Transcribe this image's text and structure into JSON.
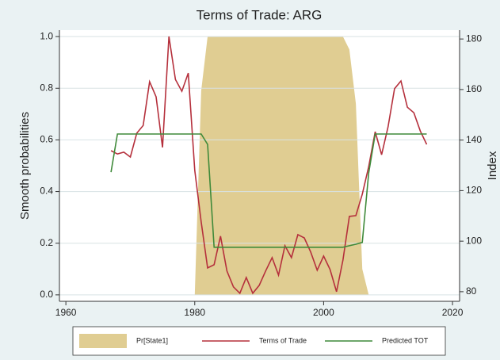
{
  "chart_data": {
    "type": "line",
    "title": "Terms of Trade: ARG",
    "y_label": "Smooth probabilities",
    "y2_label": "Index",
    "x": [
      1967,
      1968,
      1969,
      1970,
      1971,
      1972,
      1973,
      1974,
      1975,
      1976,
      1977,
      1978,
      1979,
      1980,
      1981,
      1982,
      1983,
      1984,
      1985,
      1986,
      1987,
      1988,
      1989,
      1990,
      1991,
      1992,
      1993,
      1994,
      1995,
      1996,
      1997,
      1998,
      1999,
      2000,
      2001,
      2002,
      2003,
      2004,
      2005,
      2006,
      2007,
      2008,
      2009,
      2010,
      2011,
      2012,
      2013,
      2014,
      2015,
      2016
    ],
    "xlim": [
      1959,
      2021.1
    ],
    "xticks": [
      1960,
      1980,
      2000,
      2020
    ],
    "ylim": [
      -0.025,
      1.025
    ],
    "yticks": [
      {
        "value": 0,
        "label": "0.0"
      },
      0.2,
      0.4,
      0.6,
      0.8,
      {
        "value": 1,
        "label": "1.0"
      }
    ],
    "y2lim": [
      76.2,
      183.5
    ],
    "y2ticks": [
      80,
      100,
      120,
      140,
      160,
      180
    ],
    "grid": true,
    "series": [
      {
        "name": "Pr[State1]",
        "type": "area",
        "color": "#e0cd92",
        "values": [
          0,
          0,
          0,
          0,
          0,
          0,
          0,
          0,
          0,
          0,
          0,
          0,
          0,
          0,
          0.79,
          1,
          1,
          1,
          1,
          1,
          1,
          1,
          1,
          1,
          1,
          1,
          1,
          1,
          1,
          1,
          1,
          1,
          1,
          1,
          1,
          1,
          1,
          0.95,
          0.74,
          0.1,
          0,
          0,
          0,
          0,
          0,
          0,
          0,
          0,
          0,
          0
        ]
      },
      {
        "name": "Terms of Trade",
        "type": "line",
        "axis": "y2",
        "color": "#b5303c",
        "values": [
          135.8,
          134.5,
          135.2,
          133.3,
          142.7,
          145.8,
          163.1,
          157.1,
          137.1,
          181,
          164,
          159.3,
          166.5,
          128,
          107.6,
          89.4,
          90.7,
          102,
          88.2,
          81.9,
          79.4,
          85.6,
          79.4,
          82.5,
          88.2,
          93.5,
          86.6,
          98.2,
          93.5,
          102.6,
          101.3,
          95.7,
          88.5,
          94.1,
          88.8,
          80,
          92.5,
          109.8,
          110.1,
          118.6,
          129.5,
          143.3,
          134.2,
          145.2,
          160.3,
          163.4,
          153,
          150.8,
          143.6,
          138.3
        ]
      },
      {
        "name": "Predicted TOT",
        "type": "line",
        "axis": "y2",
        "color": "#3f8a3a",
        "values": [
          127.3,
          142.4,
          142.4,
          142.4,
          142.4,
          142.4,
          142.4,
          142.4,
          142.4,
          142.4,
          142.4,
          142.4,
          142.4,
          142.4,
          142.4,
          138.3,
          97.6,
          97.6,
          97.6,
          97.6,
          97.6,
          97.6,
          97.6,
          97.6,
          97.6,
          97.6,
          97.6,
          97.6,
          97.6,
          97.6,
          97.6,
          97.6,
          97.6,
          97.6,
          97.6,
          97.6,
          97.6,
          98.2,
          98.8,
          99.5,
          127,
          142.4,
          142.4,
          142.4,
          142.4,
          142.4,
          142.4,
          142.4,
          142.4,
          142.4
        ]
      }
    ]
  }
}
